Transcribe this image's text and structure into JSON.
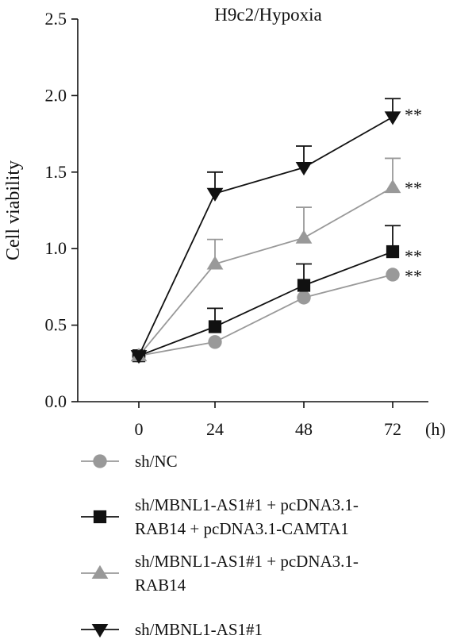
{
  "chart_data": {
    "type": "line",
    "title": "H9c2/Hypoxia",
    "xlabel": "",
    "x_unit": "(h)",
    "ylabel": "Cell viability",
    "x": [
      0,
      24,
      48,
      72
    ],
    "x_tick_labels": [
      "0",
      "24",
      "48",
      "72"
    ],
    "ylim": [
      0,
      2.5
    ],
    "y_tick_labels": [
      "0.0",
      "0.5",
      "1.0",
      "1.5",
      "2.0",
      "2.5"
    ],
    "grid": false,
    "legend_position": "bottom",
    "series": [
      {
        "name": "sh/NC",
        "legend_lines": [
          "sh/NC"
        ],
        "marker": "circle",
        "color": "#999999",
        "values": [
          0.3,
          0.39,
          0.68,
          0.83
        ],
        "errors": [
          0.0,
          0.0,
          0.0,
          0.0
        ],
        "significance": "**"
      },
      {
        "name": "sh/MBNL1-AS1#1 + pcDNA3.1-RAB14 + pcDNA3.1-CAMTA1",
        "legend_lines": [
          "sh/MBNL1-AS1#1 + pcDNA3.1-",
          "RAB14 + pcDNA3.1-CAMTA1"
        ],
        "marker": "square",
        "color": "#111111",
        "values": [
          0.3,
          0.49,
          0.76,
          0.98
        ],
        "errors": [
          0.0,
          0.12,
          0.14,
          0.17
        ],
        "significance": "**"
      },
      {
        "name": "sh/MBNL1-AS1#1 + pcDNA3.1-RAB14",
        "legend_lines": [
          "sh/MBNL1-AS1#1 + pcDNA3.1-",
          "RAB14"
        ],
        "marker": "triangle-up",
        "color": "#999999",
        "values": [
          0.3,
          0.9,
          1.07,
          1.4
        ],
        "errors": [
          0.0,
          0.16,
          0.2,
          0.19
        ],
        "significance": "**"
      },
      {
        "name": "sh/MBNL1-AS1#1",
        "legend_lines": [
          "sh/MBNL1-AS1#1"
        ],
        "marker": "triangle-down",
        "color": "#111111",
        "values": [
          0.3,
          1.36,
          1.53,
          1.86
        ],
        "errors": [
          0.0,
          0.14,
          0.14,
          0.12
        ],
        "significance": "**"
      }
    ]
  }
}
